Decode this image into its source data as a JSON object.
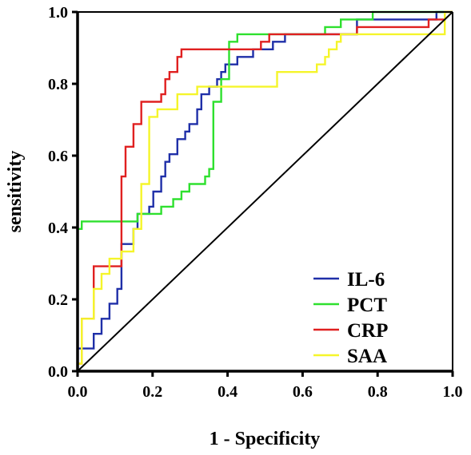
{
  "chart_data": {
    "type": "line",
    "title": "",
    "xlabel": "1 - Specificity",
    "ylabel": "sensitivity",
    "xlim": [
      0,
      1
    ],
    "ylim": [
      0,
      1
    ],
    "x_ticks": [
      "0.0",
      "0.2",
      "0.4",
      "0.6",
      "0.8",
      "1.0"
    ],
    "y_ticks": [
      "0.0",
      "0.2",
      "0.4",
      "0.6",
      "0.8",
      "1.0"
    ],
    "grid": false,
    "legend_position": "bottom-right",
    "reference_line": {
      "from": [
        0,
        0
      ],
      "to": [
        1,
        1
      ],
      "color": "#000000"
    },
    "series": [
      {
        "name": "IL-6",
        "color": "#1f2fa8",
        "points": [
          [
            0,
            0
          ],
          [
            0,
            0.063
          ],
          [
            0.043,
            0.063
          ],
          [
            0.043,
            0.104
          ],
          [
            0.064,
            0.104
          ],
          [
            0.064,
            0.146
          ],
          [
            0.085,
            0.146
          ],
          [
            0.085,
            0.188
          ],
          [
            0.106,
            0.188
          ],
          [
            0.106,
            0.229
          ],
          [
            0.117,
            0.229
          ],
          [
            0.117,
            0.354
          ],
          [
            0.149,
            0.354
          ],
          [
            0.149,
            0.396
          ],
          [
            0.16,
            0.396
          ],
          [
            0.16,
            0.438
          ],
          [
            0.191,
            0.438
          ],
          [
            0.191,
            0.458
          ],
          [
            0.202,
            0.458
          ],
          [
            0.202,
            0.5
          ],
          [
            0.223,
            0.5
          ],
          [
            0.223,
            0.542
          ],
          [
            0.234,
            0.542
          ],
          [
            0.234,
            0.583
          ],
          [
            0.245,
            0.583
          ],
          [
            0.245,
            0.604
          ],
          [
            0.266,
            0.604
          ],
          [
            0.266,
            0.646
          ],
          [
            0.287,
            0.646
          ],
          [
            0.287,
            0.667
          ],
          [
            0.298,
            0.667
          ],
          [
            0.298,
            0.688
          ],
          [
            0.319,
            0.688
          ],
          [
            0.319,
            0.729
          ],
          [
            0.33,
            0.729
          ],
          [
            0.33,
            0.771
          ],
          [
            0.351,
            0.771
          ],
          [
            0.351,
            0.792
          ],
          [
            0.372,
            0.792
          ],
          [
            0.372,
            0.813
          ],
          [
            0.383,
            0.813
          ],
          [
            0.383,
            0.833
          ],
          [
            0.394,
            0.833
          ],
          [
            0.394,
            0.854
          ],
          [
            0.426,
            0.854
          ],
          [
            0.426,
            0.875
          ],
          [
            0.468,
            0.875
          ],
          [
            0.468,
            0.896
          ],
          [
            0.521,
            0.896
          ],
          [
            0.521,
            0.917
          ],
          [
            0.553,
            0.917
          ],
          [
            0.553,
            0.938
          ],
          [
            0.745,
            0.938
          ],
          [
            0.745,
            0.979
          ],
          [
            0.957,
            0.979
          ],
          [
            0.957,
            1
          ],
          [
            1,
            1
          ]
        ]
      },
      {
        "name": "PCT",
        "color": "#2ee02e",
        "points": [
          [
            0,
            0
          ],
          [
            0,
            0.396
          ],
          [
            0.011,
            0.396
          ],
          [
            0.011,
            0.417
          ],
          [
            0.16,
            0.417
          ],
          [
            0.16,
            0.438
          ],
          [
            0.223,
            0.438
          ],
          [
            0.223,
            0.458
          ],
          [
            0.255,
            0.458
          ],
          [
            0.255,
            0.479
          ],
          [
            0.277,
            0.479
          ],
          [
            0.277,
            0.5
          ],
          [
            0.298,
            0.5
          ],
          [
            0.298,
            0.521
          ],
          [
            0.34,
            0.521
          ],
          [
            0.34,
            0.542
          ],
          [
            0.351,
            0.542
          ],
          [
            0.351,
            0.563
          ],
          [
            0.362,
            0.563
          ],
          [
            0.362,
            0.75
          ],
          [
            0.383,
            0.75
          ],
          [
            0.383,
            0.813
          ],
          [
            0.404,
            0.813
          ],
          [
            0.404,
            0.917
          ],
          [
            0.426,
            0.917
          ],
          [
            0.426,
            0.938
          ],
          [
            0.66,
            0.938
          ],
          [
            0.66,
            0.958
          ],
          [
            0.702,
            0.958
          ],
          [
            0.702,
            0.979
          ],
          [
            0.787,
            0.979
          ],
          [
            0.787,
            1
          ],
          [
            1,
            1
          ]
        ]
      },
      {
        "name": "CRP",
        "color": "#e02020",
        "points": [
          [
            0,
            0
          ],
          [
            0,
            0.021
          ],
          [
            0.011,
            0.021
          ],
          [
            0.011,
            0.146
          ],
          [
            0.043,
            0.146
          ],
          [
            0.043,
            0.292
          ],
          [
            0.117,
            0.292
          ],
          [
            0.117,
            0.542
          ],
          [
            0.128,
            0.542
          ],
          [
            0.128,
            0.625
          ],
          [
            0.149,
            0.625
          ],
          [
            0.149,
            0.688
          ],
          [
            0.17,
            0.688
          ],
          [
            0.17,
            0.75
          ],
          [
            0.223,
            0.75
          ],
          [
            0.223,
            0.771
          ],
          [
            0.234,
            0.771
          ],
          [
            0.234,
            0.813
          ],
          [
            0.245,
            0.813
          ],
          [
            0.245,
            0.833
          ],
          [
            0.266,
            0.833
          ],
          [
            0.266,
            0.875
          ],
          [
            0.277,
            0.875
          ],
          [
            0.277,
            0.896
          ],
          [
            0.489,
            0.896
          ],
          [
            0.489,
            0.917
          ],
          [
            0.511,
            0.917
          ],
          [
            0.511,
            0.938
          ],
          [
            0.745,
            0.938
          ],
          [
            0.745,
            0.958
          ],
          [
            0.936,
            0.958
          ],
          [
            0.936,
            0.979
          ],
          [
            0.979,
            0.979
          ],
          [
            0.979,
            1
          ],
          [
            1,
            1
          ]
        ]
      },
      {
        "name": "SAA",
        "color": "#f5f52a",
        "points": [
          [
            0,
            0
          ],
          [
            0,
            0.021
          ],
          [
            0.011,
            0.021
          ],
          [
            0.011,
            0.146
          ],
          [
            0.043,
            0.146
          ],
          [
            0.043,
            0.229
          ],
          [
            0.064,
            0.229
          ],
          [
            0.064,
            0.271
          ],
          [
            0.085,
            0.271
          ],
          [
            0.085,
            0.313
          ],
          [
            0.117,
            0.313
          ],
          [
            0.117,
            0.333
          ],
          [
            0.149,
            0.333
          ],
          [
            0.149,
            0.396
          ],
          [
            0.17,
            0.396
          ],
          [
            0.17,
            0.521
          ],
          [
            0.191,
            0.521
          ],
          [
            0.191,
            0.708
          ],
          [
            0.213,
            0.708
          ],
          [
            0.213,
            0.729
          ],
          [
            0.266,
            0.729
          ],
          [
            0.266,
            0.771
          ],
          [
            0.319,
            0.771
          ],
          [
            0.319,
            0.792
          ],
          [
            0.532,
            0.792
          ],
          [
            0.532,
            0.833
          ],
          [
            0.638,
            0.833
          ],
          [
            0.638,
            0.854
          ],
          [
            0.66,
            0.854
          ],
          [
            0.66,
            0.875
          ],
          [
            0.67,
            0.875
          ],
          [
            0.67,
            0.896
          ],
          [
            0.691,
            0.896
          ],
          [
            0.691,
            0.917
          ],
          [
            0.702,
            0.917
          ],
          [
            0.702,
            0.938
          ],
          [
            0.979,
            0.938
          ],
          [
            0.979,
            1
          ],
          [
            1,
            1
          ]
        ]
      }
    ]
  }
}
